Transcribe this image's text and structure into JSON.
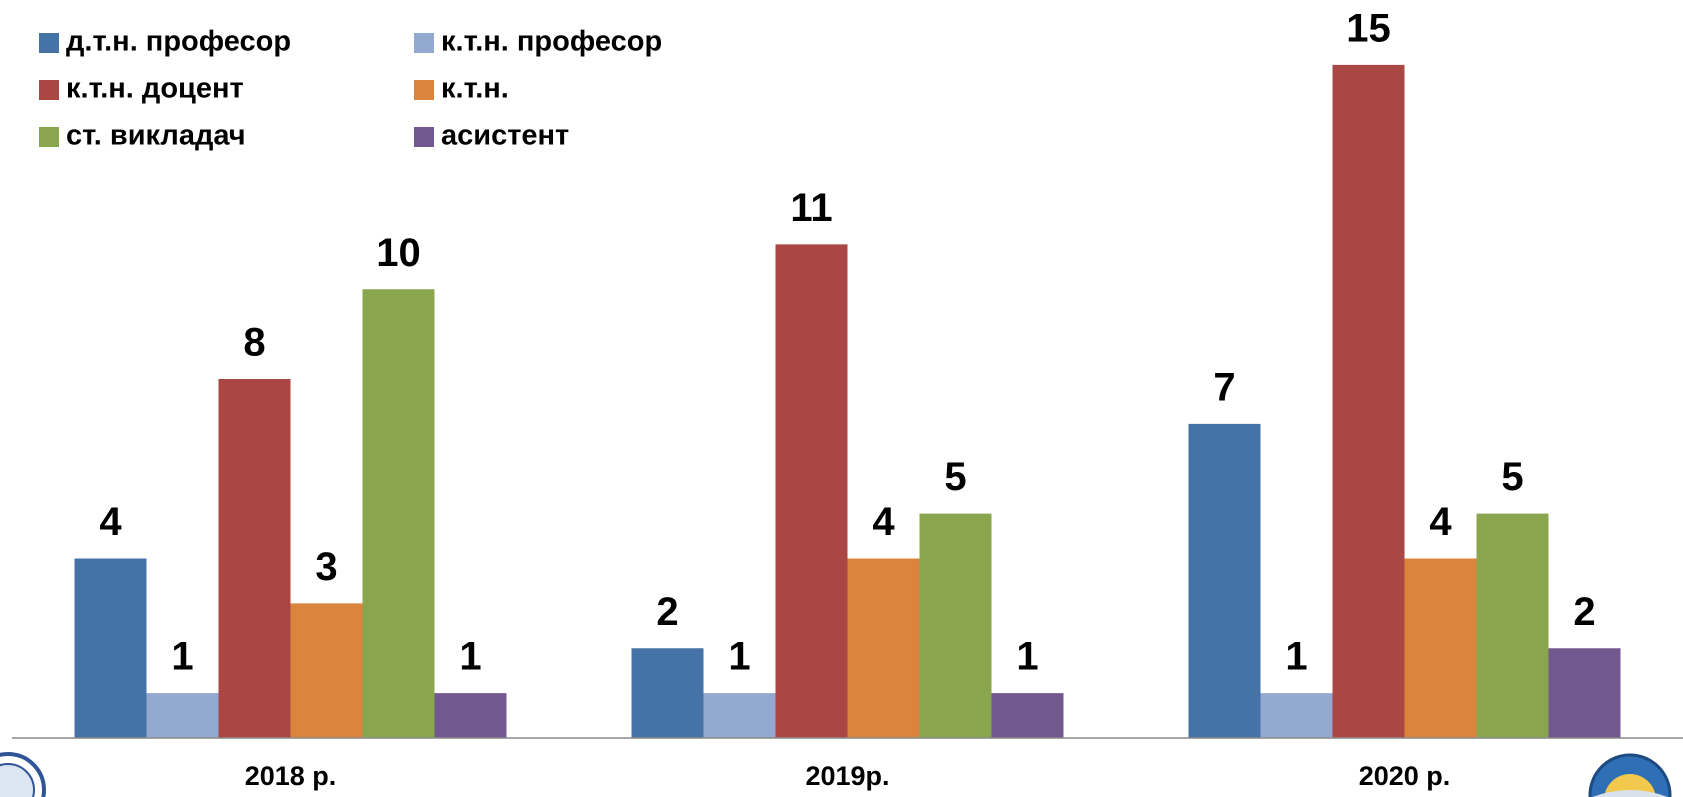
{
  "chart_data": {
    "type": "bar",
    "categories": [
      "2018 р.",
      "2019р.",
      "2020 р."
    ],
    "series": [
      {
        "name": "д.т.н. професор",
        "color": "#4572a7",
        "values": [
          4,
          2,
          7
        ]
      },
      {
        "name": "к.т.н. професор",
        "color": "#93a9cf",
        "values": [
          1,
          1,
          1
        ]
      },
      {
        "name": "к.т.н. доцент",
        "color": "#aa4643",
        "values": [
          8,
          11,
          15
        ]
      },
      {
        "name": "к.т.н.",
        "color": "#db843d",
        "values": [
          3,
          4,
          4
        ]
      },
      {
        "name": "ст. викладач",
        "color": "#89a54e",
        "values": [
          10,
          5,
          5
        ]
      },
      {
        "name": "асистент",
        "color": "#71588f",
        "values": [
          1,
          1,
          2
        ]
      }
    ],
    "ylim": [
      0,
      16
    ],
    "legend": "top-left"
  }
}
